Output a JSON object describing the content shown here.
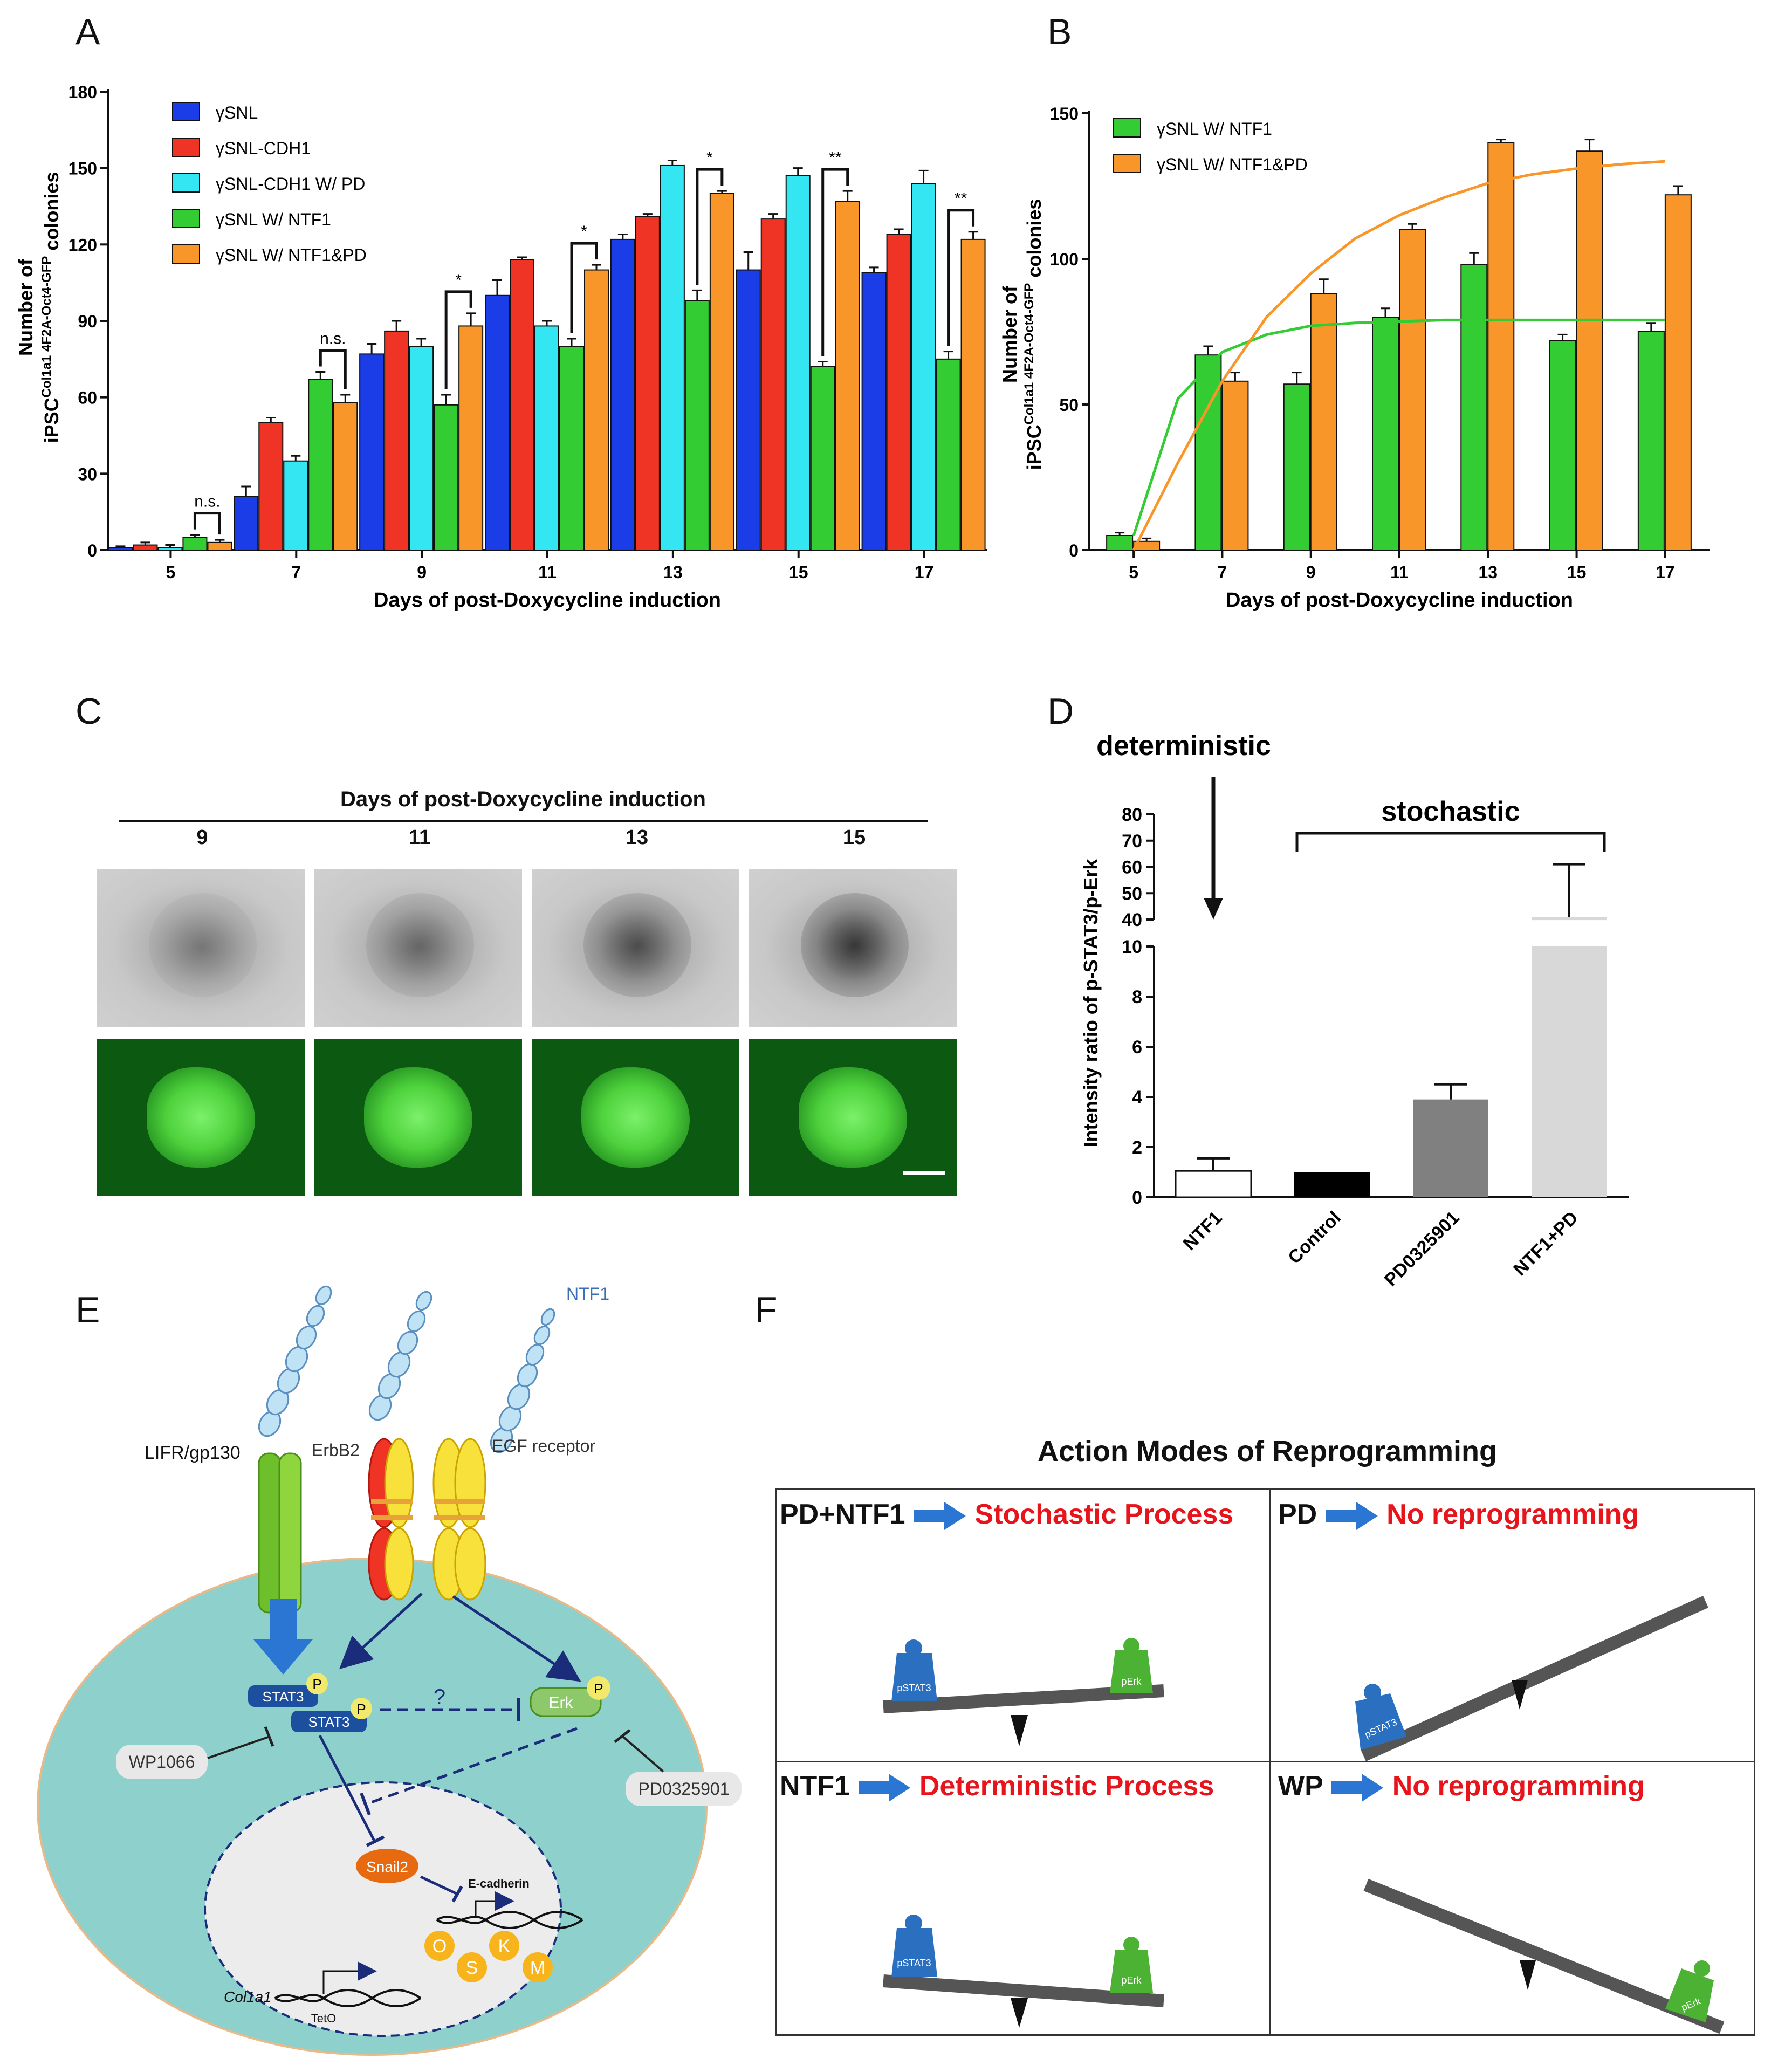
{
  "panels": {
    "A": "A",
    "B": "B",
    "C": "C",
    "D": "D",
    "E": "E",
    "F": "F"
  },
  "colors": {
    "blue": "#1a3de8",
    "red": "#ef3324",
    "cyan": "#33e6f2",
    "green": "#33cc33",
    "orange": "#f9962a",
    "teal_cell": "#8ed0cc",
    "dark_blue": "#1c4f9e"
  },
  "chart_data": [
    {
      "id": "A",
      "type": "bar",
      "title": "",
      "xlabel": "Days of post-Doxycycline induction",
      "ylabel_main": "Number of",
      "ylabel_line2": "iPSC",
      "ylabel_sup": "Col1a1 4F2A-Oct4-GFP",
      "ylabel_tail": " colonies",
      "categories": [
        "5",
        "7",
        "9",
        "11",
        "13",
        "15",
        "17"
      ],
      "ylim": [
        0,
        180
      ],
      "yticks": [
        "0",
        "30",
        "60",
        "90",
        "120",
        "150",
        "180"
      ],
      "series": [
        {
          "name": "γSNL",
          "color": "#1a3de8",
          "values": [
            1,
            21,
            77,
            100,
            122,
            110,
            109
          ],
          "errors": [
            0.5,
            4,
            4,
            6,
            2,
            7,
            2
          ]
        },
        {
          "name": "γSNL-CDH1",
          "color": "#ef3324",
          "values": [
            2,
            50,
            86,
            114,
            131,
            130,
            124
          ],
          "errors": [
            1,
            2,
            4,
            1,
            1,
            2,
            2
          ]
        },
        {
          "name": "γSNL-CDH1 W/ PD",
          "color": "#33e6f2",
          "values": [
            1,
            35,
            80,
            88,
            151,
            147,
            144
          ],
          "errors": [
            1,
            2,
            3,
            2,
            2,
            3,
            5
          ]
        },
        {
          "name": "γSNL W/ NTF1",
          "color": "#33cc33",
          "values": [
            5,
            67,
            57,
            80,
            98,
            72,
            75
          ],
          "errors": [
            1,
            3,
            4,
            3,
            4,
            2,
            3
          ]
        },
        {
          "name": "γSNL W/ NTF1&PD",
          "color": "#f9962a",
          "values": [
            3,
            58,
            88,
            110,
            140,
            137,
            122
          ],
          "errors": [
            1,
            3,
            5,
            2,
            1,
            4,
            3
          ]
        }
      ],
      "significance": [
        "n.s.",
        "n.s.",
        "*",
        "*",
        "*",
        "**",
        "**"
      ]
    },
    {
      "id": "B",
      "type": "bar",
      "title": "",
      "xlabel": "Days of post-Doxycycline induction",
      "ylabel_main": "Number of",
      "ylabel_line2": "iPSC",
      "ylabel_sup": "Col1a1 4F2A-Oct4-GFP",
      "ylabel_tail": " colonies",
      "categories": [
        "5",
        "7",
        "9",
        "11",
        "13",
        "15",
        "17"
      ],
      "ylim": [
        0,
        150
      ],
      "yticks": [
        "0",
        "50",
        "100",
        "150"
      ],
      "series": [
        {
          "name": "γSNL W/ NTF1",
          "color": "#33cc33",
          "values": [
            5,
            67,
            57,
            80,
            98,
            72,
            75
          ],
          "errors": [
            1,
            3,
            4,
            3,
            4,
            2,
            3
          ]
        },
        {
          "name": "γSNL W/ NTF1&PD",
          "color": "#f9962a",
          "values": [
            3,
            58,
            88,
            110,
            140,
            137,
            122
          ],
          "errors": [
            1,
            3,
            5,
            2,
            1,
            4,
            3
          ]
        }
      ],
      "fits": [
        {
          "name": "γSNL W/ NTF1",
          "color": "#33cc33",
          "x": [
            5,
            6,
            7,
            8,
            9,
            10,
            11,
            12,
            13,
            14,
            15,
            16,
            17
          ],
          "y": [
            5,
            52,
            68,
            74,
            77,
            78,
            78.5,
            79,
            79,
            79,
            79,
            79,
            79
          ]
        },
        {
          "name": "γSNL W/ NTF1&PD",
          "color": "#f9962a",
          "x": [
            5,
            6,
            7,
            8,
            9,
            10,
            11,
            12,
            13,
            14,
            15,
            16,
            17
          ],
          "y": [
            0,
            30,
            58,
            80,
            95,
            107,
            115,
            121,
            126,
            129,
            131,
            132.5,
            133.5
          ]
        }
      ]
    },
    {
      "id": "D",
      "type": "bar",
      "title": "",
      "ylabel": "Intensity ratio of p-STAT3/p-Erk",
      "categories": [
        "NTF1",
        "Control",
        "PD0325901",
        "NTF1+PD"
      ],
      "values": [
        1.05,
        1.0,
        3.9,
        41
      ],
      "errors": [
        0.5,
        0,
        0.6,
        20
      ],
      "colors": [
        "#ffffff",
        "#000000",
        "#808080",
        "#d8d8d8"
      ],
      "yticks_lower": [
        "0",
        "2",
        "4",
        "6",
        "8",
        "10"
      ],
      "yticks_upper": [
        "40",
        "50",
        "60",
        "70",
        "80"
      ],
      "label_deterministic": "deterministic",
      "label_stochastic": "stochastic"
    }
  ],
  "panelC": {
    "title": "Days of post-Doxycycline induction",
    "days": [
      "9",
      "11",
      "13",
      "15"
    ]
  },
  "panelE": {
    "ntf1_label": "NTF1",
    "lifr_label": "LIFR/gp130",
    "erbb2_label": "ErbB2",
    "egfr_label": "EGF receptor",
    "stat3_label": "STAT3",
    "stat3b_label": "STAT3",
    "p_label": "P",
    "erk_label": "Erk",
    "question": "?",
    "wp_label": "WP1066",
    "pd_label": "PD0325901",
    "snail_label": "Snail2",
    "ecad_label": "E-cadherin",
    "col1a1_label": "Col1a1",
    "teto_label": "TetO",
    "osk": [
      "O",
      "S",
      "K",
      "M"
    ]
  },
  "panelF": {
    "title": "Action Modes of Reprogramming",
    "q1_left": "PD+NTF1",
    "q1_right": "Stochastic Process",
    "q2_left": "PD",
    "q2_right": "No reprogramming",
    "q3_left": "NTF1",
    "q3_right": "Deterministic Process",
    "q4_left": "WP",
    "q4_right": "No reprogramming",
    "weight_pstat3": "pSTAT3",
    "weight_perk": "pErk"
  }
}
